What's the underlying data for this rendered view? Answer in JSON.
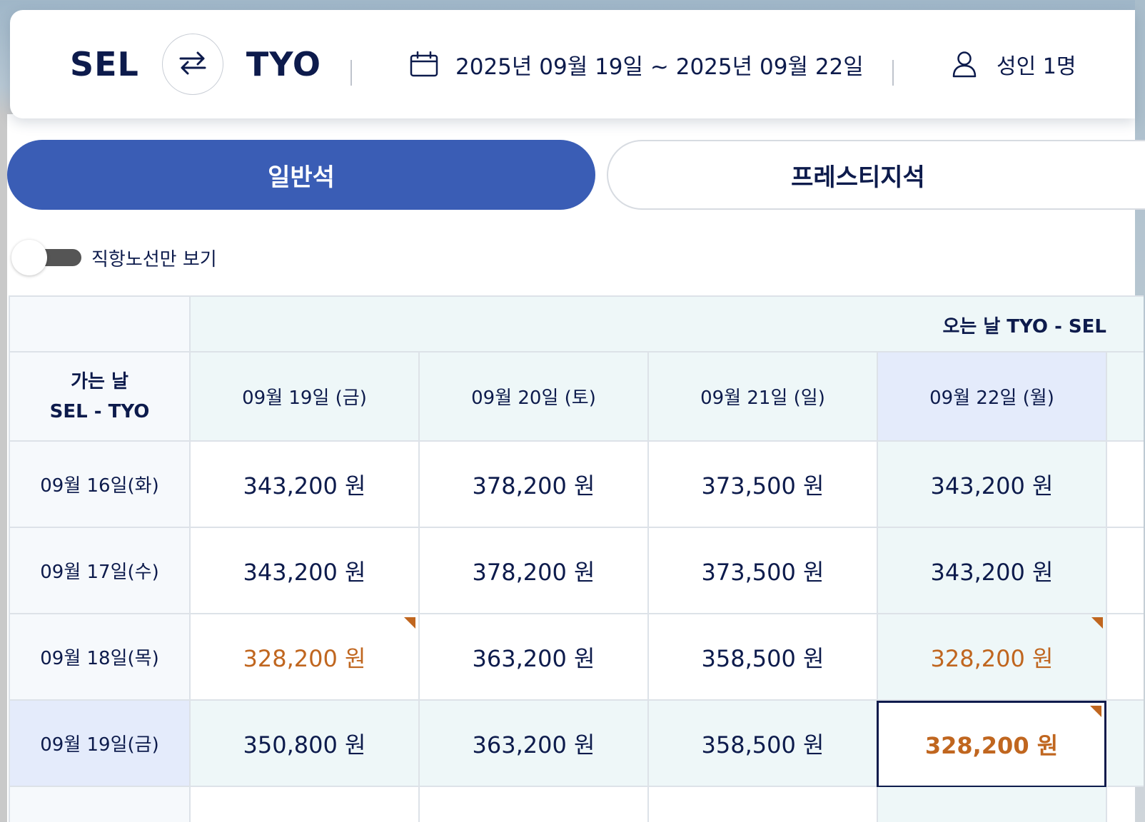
{
  "search": {
    "origin": "SEL",
    "destination": "TYO",
    "dates": "2025년 09월 19일 ~ 2025년 09월 22일",
    "passengers": "성인 1명"
  },
  "cabins": {
    "economy": "일반석",
    "prestige": "프레스티지석"
  },
  "filter": {
    "direct_only_label": "직항노선만 보기",
    "direct_only_on": false
  },
  "grid": {
    "return_title": "오는 날 TYO - SEL",
    "depart_title_line1": "가는 날",
    "depart_title_line2": "SEL - TYO",
    "return_dates": [
      "09월 19일 (금)",
      "09월 20일 (토)",
      "09월 21일 (일)",
      "09월 22일 (월)"
    ],
    "rows": [
      {
        "date": "09월 16일(화)",
        "prices": [
          "343,200 원",
          "378,200 원",
          "373,500 원",
          "343,200 원"
        ]
      },
      {
        "date": "09월 17일(수)",
        "prices": [
          "343,200 원",
          "378,200 원",
          "373,500 원",
          "343,200 원"
        ]
      },
      {
        "date": "09월 18일(목)",
        "prices": [
          "328,200 원",
          "363,200 원",
          "358,500 원",
          "328,200 원"
        ]
      },
      {
        "date": "09월 19일(금)",
        "prices": [
          "350,800 원",
          "363,200 원",
          "358,500 원",
          "328,200 원"
        ]
      }
    ]
  },
  "colors": {
    "accent": "#3a5db5",
    "navy": "#0d1b4c",
    "lowest_fare": "#c0661f"
  },
  "icons": {
    "swap": "swap-arrows-icon",
    "calendar": "calendar-icon",
    "passenger": "person-icon",
    "lowest_fare_flag": "corner-flag-icon"
  }
}
